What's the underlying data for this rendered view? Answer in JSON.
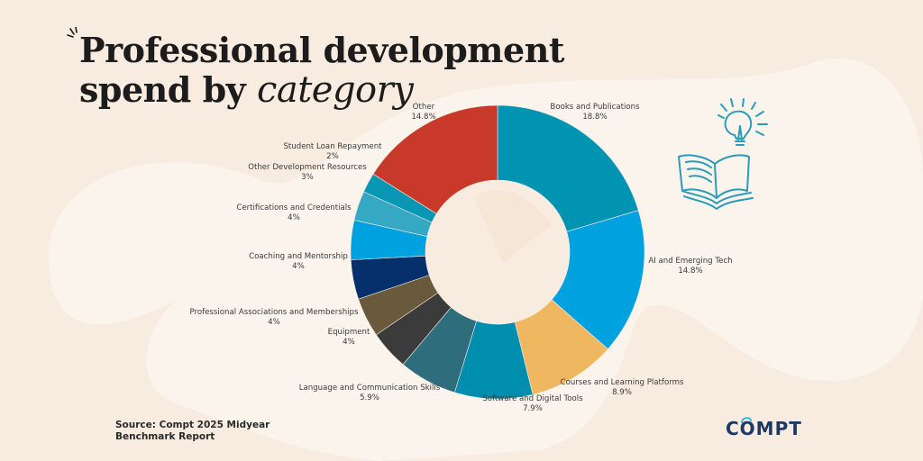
{
  "title": {
    "line1": "Professional development",
    "line2_prefix": "spend by ",
    "line2_accent": "category"
  },
  "source": {
    "line1": "Source: Compt 2025 Midyear",
    "line2": "Benchmark Report"
  },
  "logo": {
    "text": "COMPT",
    "color": "#1d3a64"
  },
  "colors": {
    "background": "#f8ece0",
    "blob": "#faf4ec",
    "illustration": "#2a9bb8"
  },
  "icons": [
    "lightbulb-icon",
    "open-book-icon"
  ],
  "chart_data": {
    "type": "pie",
    "title": "Professional development spend by category",
    "hole": true,
    "slices": [
      {
        "label": "Books and Publications",
        "value_label": "18.8%",
        "value": 18.8,
        "color": "#0093b2"
      },
      {
        "label": "AI and Emerging Tech",
        "value_label": "14.8%",
        "value": 14.8,
        "color": "#00a1df"
      },
      {
        "label": "Courses and Learning Platforms",
        "value_label": "8.9%",
        "value": 8.9,
        "color": "#efb75f"
      },
      {
        "label": "Software and Digital Tools",
        "value_label": "7.9%",
        "value": 7.9,
        "color": "#008eae"
      },
      {
        "label": "Language and Communication Skills",
        "value_label": "5.9%",
        "value": 5.9,
        "color": "#2e6e7c"
      },
      {
        "label": "Equipment",
        "value_label": "4%",
        "value": 4,
        "color": "#3b3b3b"
      },
      {
        "label": "Professional Associations and Memberships",
        "value_label": "4%",
        "value": 4,
        "color": "#6a5a3c"
      },
      {
        "label": "Coaching and Mentorship",
        "value_label": "4%",
        "value": 4,
        "color": "#05306b"
      },
      {
        "label": "Certifications and Credentials",
        "value_label": "4%",
        "value": 4,
        "color": "#00a1df"
      },
      {
        "label": "Other Development Resources",
        "value_label": "3%",
        "value": 3,
        "color": "#35a9c4"
      },
      {
        "label": "Student Loan Repayment",
        "value_label": "2%",
        "value": 2,
        "color": "#0796b4"
      },
      {
        "label": "Other",
        "value_label": "14.8%",
        "value": 14.8,
        "color": "#efb75f"
      }
    ]
  }
}
